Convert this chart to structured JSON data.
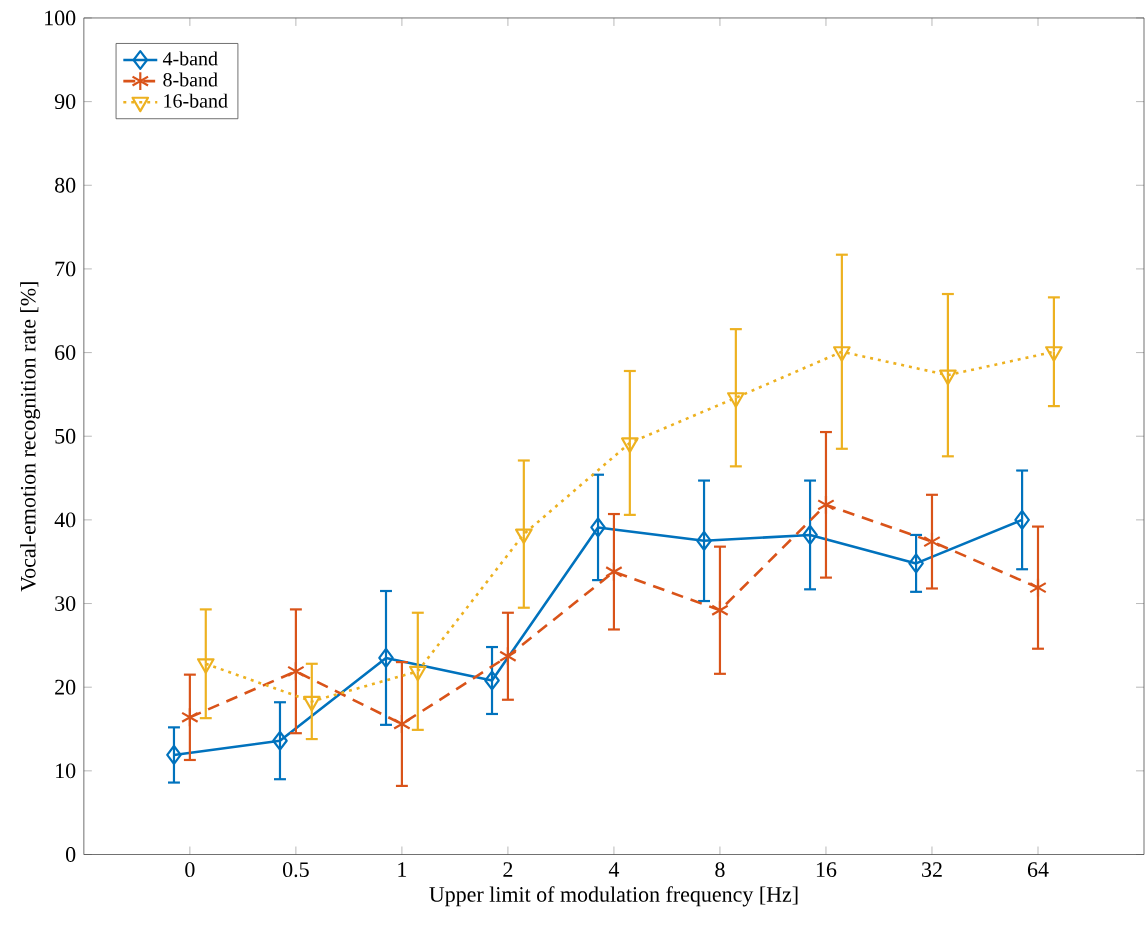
{
  "chart_data": {
    "type": "line",
    "xlabel": "Upper limit of modulation frequency [Hz]",
    "ylabel": "Vocal-emotion recognition rate [%]",
    "categories": [
      "0",
      "0.5",
      "1",
      "2",
      "4",
      "8",
      "16",
      "32",
      "64"
    ],
    "ylim": [
      0,
      100
    ],
    "yticks": [
      0,
      10,
      20,
      30,
      40,
      50,
      60,
      70,
      80,
      90,
      100
    ],
    "grid": false,
    "legend": "top left",
    "series": [
      {
        "name": "4-band",
        "color": "#0072bd",
        "marker": "diamond",
        "line_style": "solid",
        "values": [
          11.9,
          13.6,
          23.5,
          20.8,
          39.1,
          37.5,
          38.2,
          34.8,
          40.0
        ],
        "errors": [
          3.3,
          4.6,
          8.0,
          4.0,
          6.3,
          7.2,
          6.5,
          3.4,
          5.9
        ]
      },
      {
        "name": "8-band",
        "color": "#d95319",
        "marker": "cross",
        "line_style": "dashed",
        "values": [
          16.4,
          21.9,
          15.6,
          23.7,
          33.8,
          29.2,
          41.8,
          37.4,
          31.9
        ],
        "errors": [
          5.1,
          7.4,
          7.4,
          5.2,
          6.9,
          7.6,
          8.7,
          5.6,
          7.3
        ]
      },
      {
        "name": "16-band",
        "color": "#edb120",
        "marker": "triangle",
        "line_style": "dotted",
        "values": [
          22.8,
          18.3,
          21.9,
          38.3,
          49.2,
          54.6,
          60.1,
          57.3,
          60.1
        ],
        "errors": [
          6.5,
          4.5,
          7.0,
          8.8,
          8.6,
          8.2,
          11.6,
          9.7,
          6.5
        ]
      }
    ]
  }
}
